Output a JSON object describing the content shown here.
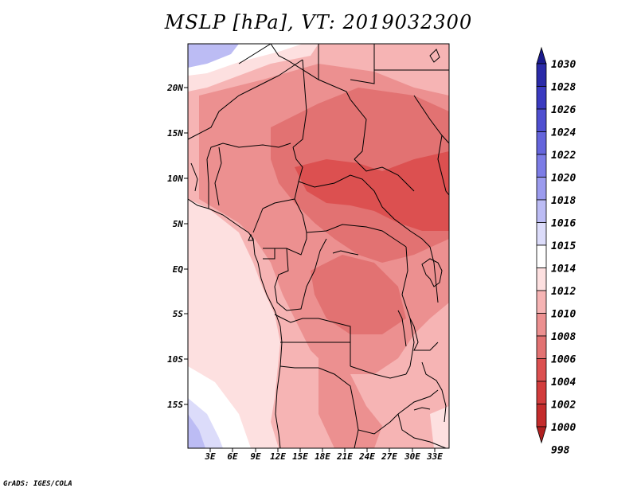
{
  "title": "MSLP [hPa],  VT: 2019032300",
  "credit": "GrADS: IGES/COLA",
  "map": {
    "variable": "MSLP",
    "units": "hPa",
    "valid_time": "2019032300",
    "lat_labels": [
      "20N",
      "15N",
      "10N",
      "5N",
      "EQ",
      "5S",
      "10S",
      "15S"
    ],
    "lon_labels": [
      "3E",
      "6E",
      "9E",
      "12E",
      "15E",
      "18E",
      "21E",
      "24E",
      "27E",
      "30E",
      "33E"
    ]
  },
  "colorbar": {
    "levels": [
      "1030",
      "1028",
      "1026",
      "1024",
      "1022",
      "1020",
      "1018",
      "1016",
      "1015",
      "1014",
      "1012",
      "1010",
      "1008",
      "1006",
      "1004",
      "1002",
      "1000",
      "998"
    ],
    "colors": [
      "#1a1a8c",
      "#2a2aa8",
      "#3a3ac0",
      "#4f4fd0",
      "#6565dc",
      "#7c7ce6",
      "#9b9bee",
      "#bcbcf4",
      "#dcdcfa",
      "#ffffff",
      "#fde0e0",
      "#f6b4b4",
      "#ec9090",
      "#e27272",
      "#dc5050",
      "#d23c3c",
      "#c42c2c",
      "#b02020"
    ]
  }
}
